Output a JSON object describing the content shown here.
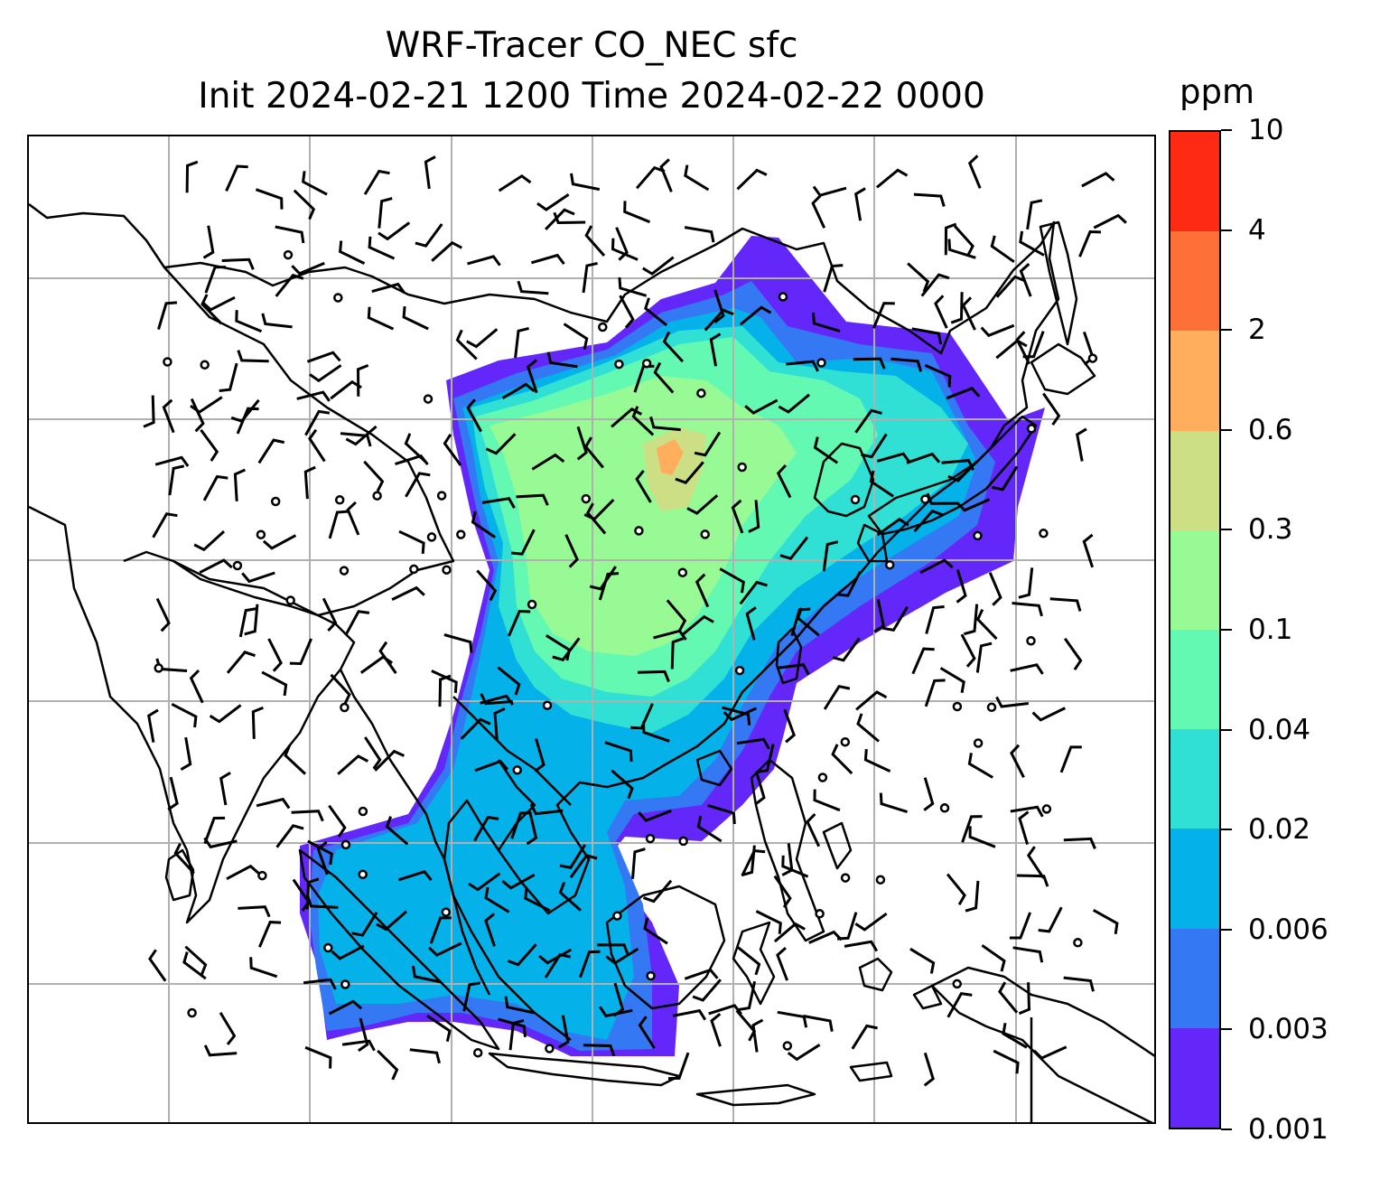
{
  "title": {
    "line1": "WRF-Tracer CO_NEC sfc",
    "line2": "Init 2024-02-21 1200 Time 2024-02-22 0000"
  },
  "colorbar": {
    "unit": "ppm",
    "levels": [
      "0.001",
      "0.003",
      "0.006",
      "0.02",
      "0.04",
      "0.1",
      "0.3",
      "0.6",
      "2",
      "4",
      "10"
    ],
    "colors": [
      "#6427f9",
      "#3478f4",
      "#05b1e9",
      "#30e0d4",
      "#64f9b3",
      "#98fa94",
      "#ccdf85",
      "#ffae5d",
      "#ff7039",
      "#ff2a14"
    ]
  },
  "map": {
    "field": "CO_NEC surface tracer concentration",
    "grid_lines": "on",
    "overlays": [
      "coastlines",
      "country borders",
      "wind barbs",
      "calm-wind circles"
    ]
  }
}
